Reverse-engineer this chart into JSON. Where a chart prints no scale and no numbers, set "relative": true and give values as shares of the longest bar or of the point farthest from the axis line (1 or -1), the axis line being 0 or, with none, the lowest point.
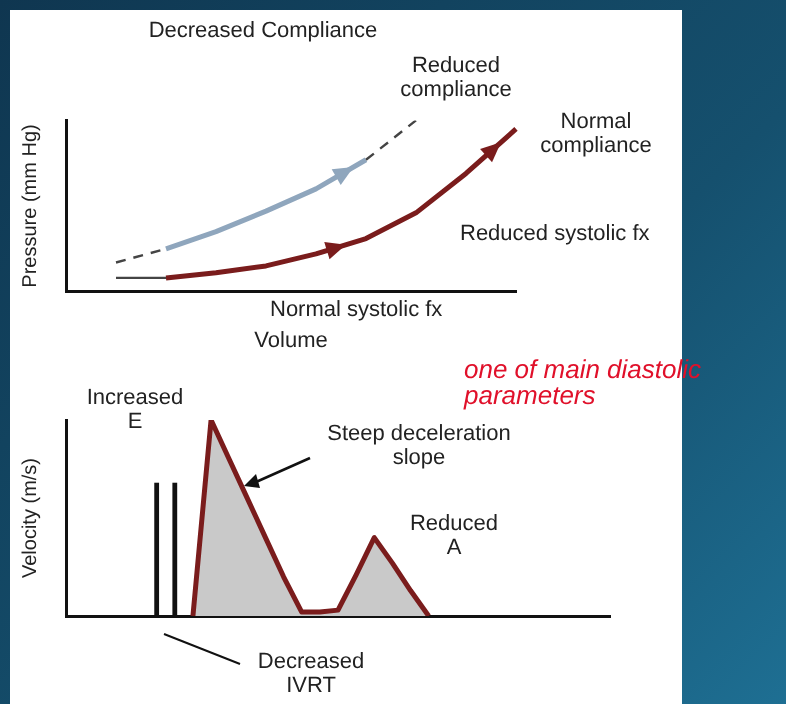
{
  "chart_data": [
    {
      "type": "line",
      "title": "Decreased Compliance",
      "xlabel": "Volume",
      "ylabel": "Pressure (mm Hg)",
      "relative": true,
      "grid": false,
      "marker": "none",
      "categories": [
        null,
        null,
        null,
        null,
        null,
        null,
        null,
        null,
        null,
        null
      ],
      "series": [
        {
          "color": "#444444",
          "line_style": "dashed",
          "values": [
            null,
            0.17,
            0.25,
            null,
            null,
            null,
            0.77,
            1.0,
            null,
            null
          ]
        },
        {
          "color": "#8fa6bd",
          "values": [
            null,
            null,
            0.25,
            0.35,
            0.47,
            0.6,
            0.77,
            null,
            null,
            null
          ]
        },
        {
          "color": "#444444",
          "values": [
            null,
            0.08,
            0.08,
            null,
            null,
            null,
            null,
            null,
            null,
            null
          ]
        },
        {
          "color": "#7a1c1c",
          "values": [
            null,
            null,
            0.08,
            0.11,
            0.15,
            0.22,
            0.31,
            0.46,
            0.69,
            0.95
          ]
        }
      ],
      "annotations": [
        "Reduced compliance",
        "Normal compliance",
        "Reduced systolic fx",
        "Normal systolic fx"
      ]
    },
    {
      "type": "area",
      "ylabel": "Velocity (m/s)",
      "relative": true,
      "grid": false,
      "marker": "none",
      "categories": [
        null,
        null,
        null,
        null,
        null,
        null,
        null,
        null,
        null,
        null,
        null,
        null,
        null,
        null,
        null,
        null,
        null,
        null,
        null,
        null,
        null,
        null,
        null,
        null,
        null,
        null,
        null,
        null,
        null,
        null,
        null
      ],
      "series": [
        {
          "color": "#7a1c1c",
          "values": [
            null,
            null,
            null,
            null,
            null,
            null,
            null,
            0,
            1,
            0.8,
            0.6,
            0.4,
            0.2,
            0.02,
            0.02,
            0.03,
            0.21,
            0.4,
            0.27,
            0.13,
            0,
            null,
            null,
            null,
            null,
            null,
            null,
            null,
            null,
            null,
            null
          ]
        }
      ],
      "annotations": [
        "Increased E",
        "Steep deceleration slope",
        "Reduced A",
        "Decreased IVRT",
        "one of main diastolic parameters"
      ]
    }
  ]
}
